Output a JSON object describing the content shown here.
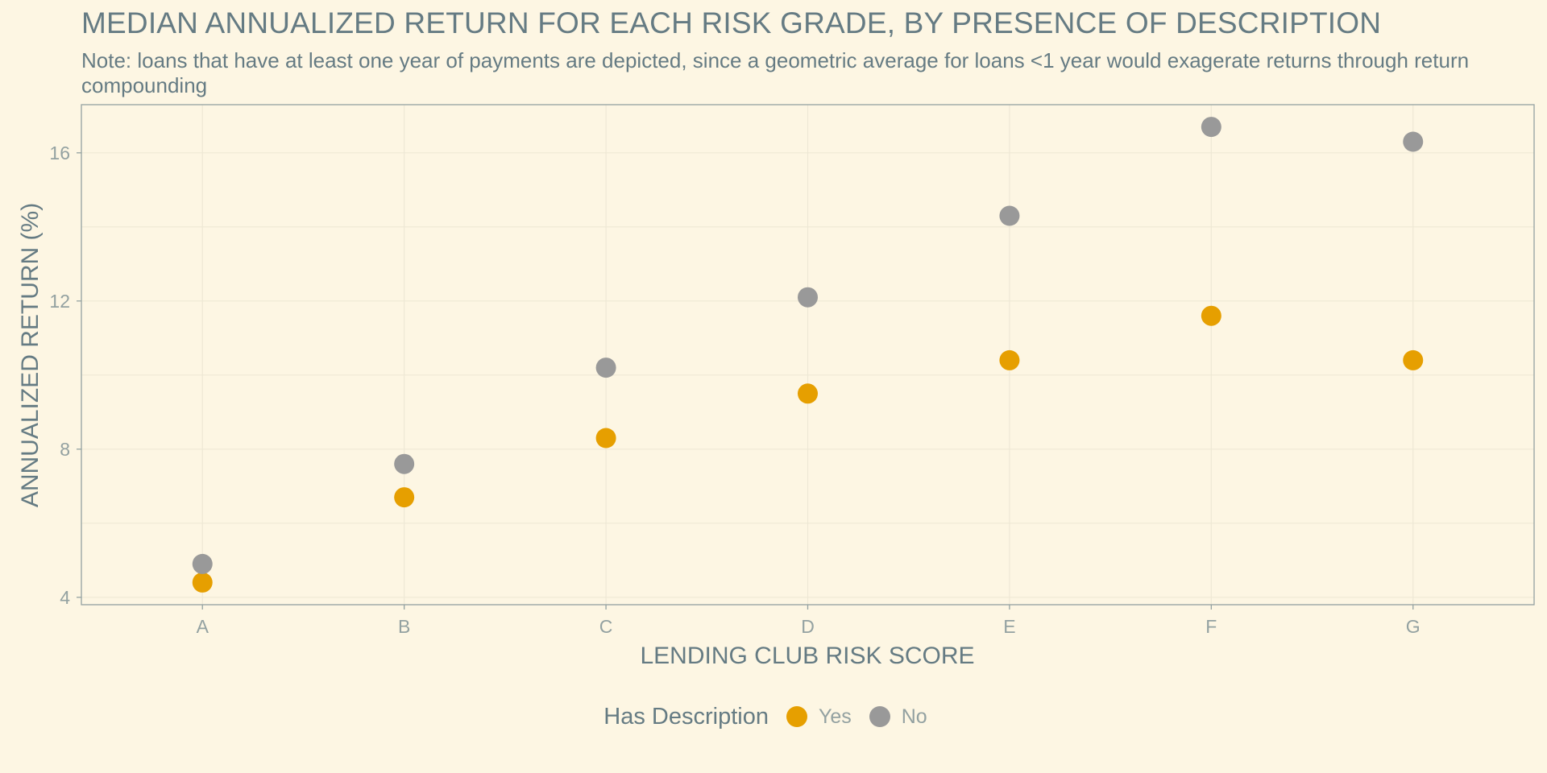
{
  "chart_data": {
    "type": "scatter",
    "title": "MEDIAN ANNUALIZED RETURN FOR EACH RISK GRADE, BY PRESENCE OF DESCRIPTION",
    "subtitle": "Note: loans that have at least one year of payments are depicted, since a geometric average for loans <1 year would exagerate returns through return compounding",
    "xlabel": "LENDING CLUB RISK SCORE",
    "ylabel": "ANNUALIZED RETURN (%)",
    "categories": [
      "A",
      "B",
      "C",
      "D",
      "E",
      "F",
      "G"
    ],
    "ylim": [
      3.8,
      17.3
    ],
    "yticks": [
      4,
      8,
      12,
      16
    ],
    "grid": true,
    "legend": {
      "title": "Has Description",
      "position": "bottom"
    },
    "series": [
      {
        "name": "Yes",
        "color": "#e69f00",
        "values": [
          4.4,
          6.7,
          8.3,
          9.5,
          10.4,
          11.6,
          10.4
        ]
      },
      {
        "name": "No",
        "color": "#999999",
        "values": [
          4.9,
          7.6,
          10.2,
          12.1,
          14.3,
          16.7,
          16.3
        ]
      }
    ]
  },
  "colors": {
    "background": "#fdf6e3",
    "text": "#657b83",
    "muted_text": "#93a1a1",
    "axis": "#93a1a1",
    "grid": "#eee8d5"
  }
}
